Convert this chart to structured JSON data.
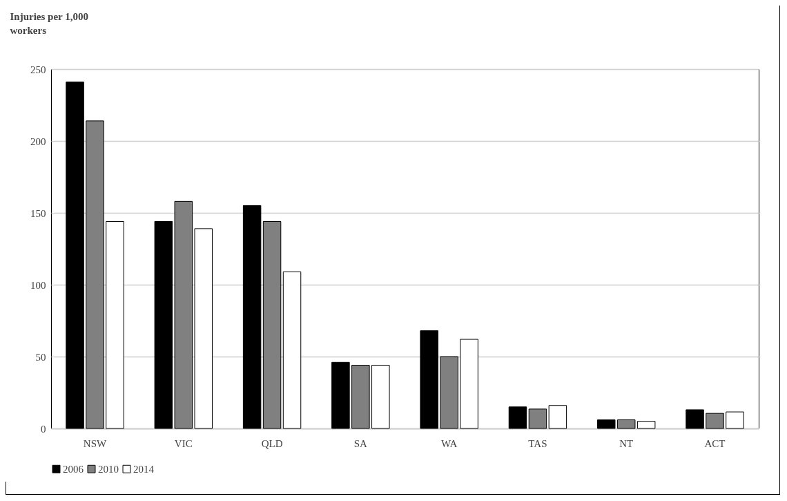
{
  "chart_data": {
    "type": "bar",
    "ylabel": "Injuries per 1,000 workers",
    "categories": [
      "NSW",
      "VIC",
      "QLD",
      "SA",
      "WA",
      "TAS",
      "NT",
      "ACT"
    ],
    "series": [
      {
        "name": "2006",
        "color": "#000000",
        "values": [
          241,
          144,
          155,
          46,
          68,
          15,
          6,
          13
        ]
      },
      {
        "name": "2010",
        "color": "#808080",
        "values": [
          214,
          158,
          144,
          44,
          50,
          13.5,
          6,
          10.5
        ]
      },
      {
        "name": "2014",
        "color": "#ffffff",
        "values": [
          144,
          139,
          109,
          44,
          62,
          16,
          5,
          11.5
        ]
      }
    ],
    "ylim": [
      0,
      250
    ],
    "yticks": [
      0,
      50,
      100,
      150,
      200,
      250
    ],
    "grid": "y",
    "legend": "bottom"
  }
}
